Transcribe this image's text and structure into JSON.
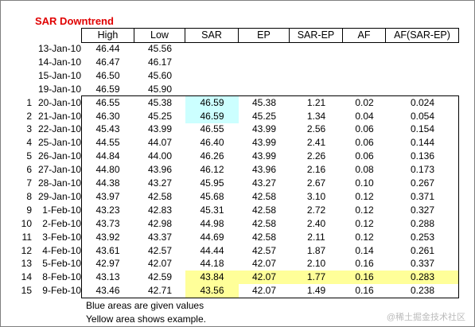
{
  "title": "SAR Downtrend",
  "headers": [
    "High",
    "Low",
    "SAR",
    "EP",
    "SAR-EP",
    "AF",
    "AF(SAR-EP)"
  ],
  "pre_rows": [
    {
      "date": "13-Jan-10",
      "high": "46.44",
      "low": "45.56"
    },
    {
      "date": "14-Jan-10",
      "high": "46.47",
      "low": "46.17"
    },
    {
      "date": "15-Jan-10",
      "high": "46.50",
      "low": "45.60"
    },
    {
      "date": "19-Jan-10",
      "high": "46.59",
      "low": "45.90"
    }
  ],
  "rows": [
    {
      "index": "1",
      "date": "20-Jan-10",
      "high": "46.55",
      "low": "45.38",
      "sar": "46.59",
      "ep": "45.38",
      "sar_ep": "1.21",
      "af": "0.02",
      "af_sar_ep": "0.024",
      "highlight": "blue"
    },
    {
      "index": "2",
      "date": "21-Jan-10",
      "high": "46.30",
      "low": "45.25",
      "sar": "46.59",
      "ep": "45.25",
      "sar_ep": "1.34",
      "af": "0.04",
      "af_sar_ep": "0.054",
      "highlight": "blue"
    },
    {
      "index": "3",
      "date": "22-Jan-10",
      "high": "45.43",
      "low": "43.99",
      "sar": "46.55",
      "ep": "43.99",
      "sar_ep": "2.56",
      "af": "0.06",
      "af_sar_ep": "0.154",
      "highlight": ""
    },
    {
      "index": "4",
      "date": "25-Jan-10",
      "high": "44.55",
      "low": "44.07",
      "sar": "46.40",
      "ep": "43.99",
      "sar_ep": "2.41",
      "af": "0.06",
      "af_sar_ep": "0.144",
      "highlight": ""
    },
    {
      "index": "5",
      "date": "26-Jan-10",
      "high": "44.84",
      "low": "44.00",
      "sar": "46.26",
      "ep": "43.99",
      "sar_ep": "2.26",
      "af": "0.06",
      "af_sar_ep": "0.136",
      "highlight": ""
    },
    {
      "index": "6",
      "date": "27-Jan-10",
      "high": "44.80",
      "low": "43.96",
      "sar": "46.12",
      "ep": "43.96",
      "sar_ep": "2.16",
      "af": "0.08",
      "af_sar_ep": "0.173",
      "highlight": ""
    },
    {
      "index": "7",
      "date": "28-Jan-10",
      "high": "44.38",
      "low": "43.27",
      "sar": "45.95",
      "ep": "43.27",
      "sar_ep": "2.67",
      "af": "0.10",
      "af_sar_ep": "0.267",
      "highlight": ""
    },
    {
      "index": "8",
      "date": "29-Jan-10",
      "high": "43.97",
      "low": "42.58",
      "sar": "45.68",
      "ep": "42.58",
      "sar_ep": "3.10",
      "af": "0.12",
      "af_sar_ep": "0.371",
      "highlight": ""
    },
    {
      "index": "9",
      "date": "1-Feb-10",
      "high": "43.23",
      "low": "42.83",
      "sar": "45.31",
      "ep": "42.58",
      "sar_ep": "2.72",
      "af": "0.12",
      "af_sar_ep": "0.327",
      "highlight": ""
    },
    {
      "index": "10",
      "date": "2-Feb-10",
      "high": "43.73",
      "low": "42.98",
      "sar": "44.98",
      "ep": "42.58",
      "sar_ep": "2.40",
      "af": "0.12",
      "af_sar_ep": "0.288",
      "highlight": ""
    },
    {
      "index": "11",
      "date": "3-Feb-10",
      "high": "43.92",
      "low": "43.37",
      "sar": "44.69",
      "ep": "42.58",
      "sar_ep": "2.11",
      "af": "0.12",
      "af_sar_ep": "0.253",
      "highlight": ""
    },
    {
      "index": "12",
      "date": "4-Feb-10",
      "high": "43.61",
      "low": "42.57",
      "sar": "44.44",
      "ep": "42.57",
      "sar_ep": "1.87",
      "af": "0.14",
      "af_sar_ep": "0.261",
      "highlight": ""
    },
    {
      "index": "13",
      "date": "5-Feb-10",
      "high": "42.97",
      "low": "42.07",
      "sar": "44.18",
      "ep": "42.07",
      "sar_ep": "2.10",
      "af": "0.16",
      "af_sar_ep": "0.337",
      "highlight": ""
    },
    {
      "index": "14",
      "date": "8-Feb-10",
      "high": "43.13",
      "low": "42.59",
      "sar": "43.84",
      "ep": "42.07",
      "sar_ep": "1.77",
      "af": "0.16",
      "af_sar_ep": "0.283",
      "highlight": "yellow"
    },
    {
      "index": "15",
      "date": "9-Feb-10",
      "high": "43.46",
      "low": "42.71",
      "sar": "43.56",
      "ep": "42.07",
      "sar_ep": "1.49",
      "af": "0.16",
      "af_sar_ep": "0.238",
      "highlight": "yellow-sar"
    }
  ],
  "notes": [
    "Blue areas are given values",
    "Yellow area shows example."
  ],
  "watermark": "@稀土掘金技术社区",
  "colors": {
    "title": "#e00000",
    "blue": "#ccffff",
    "yellow": "#ffff99"
  }
}
